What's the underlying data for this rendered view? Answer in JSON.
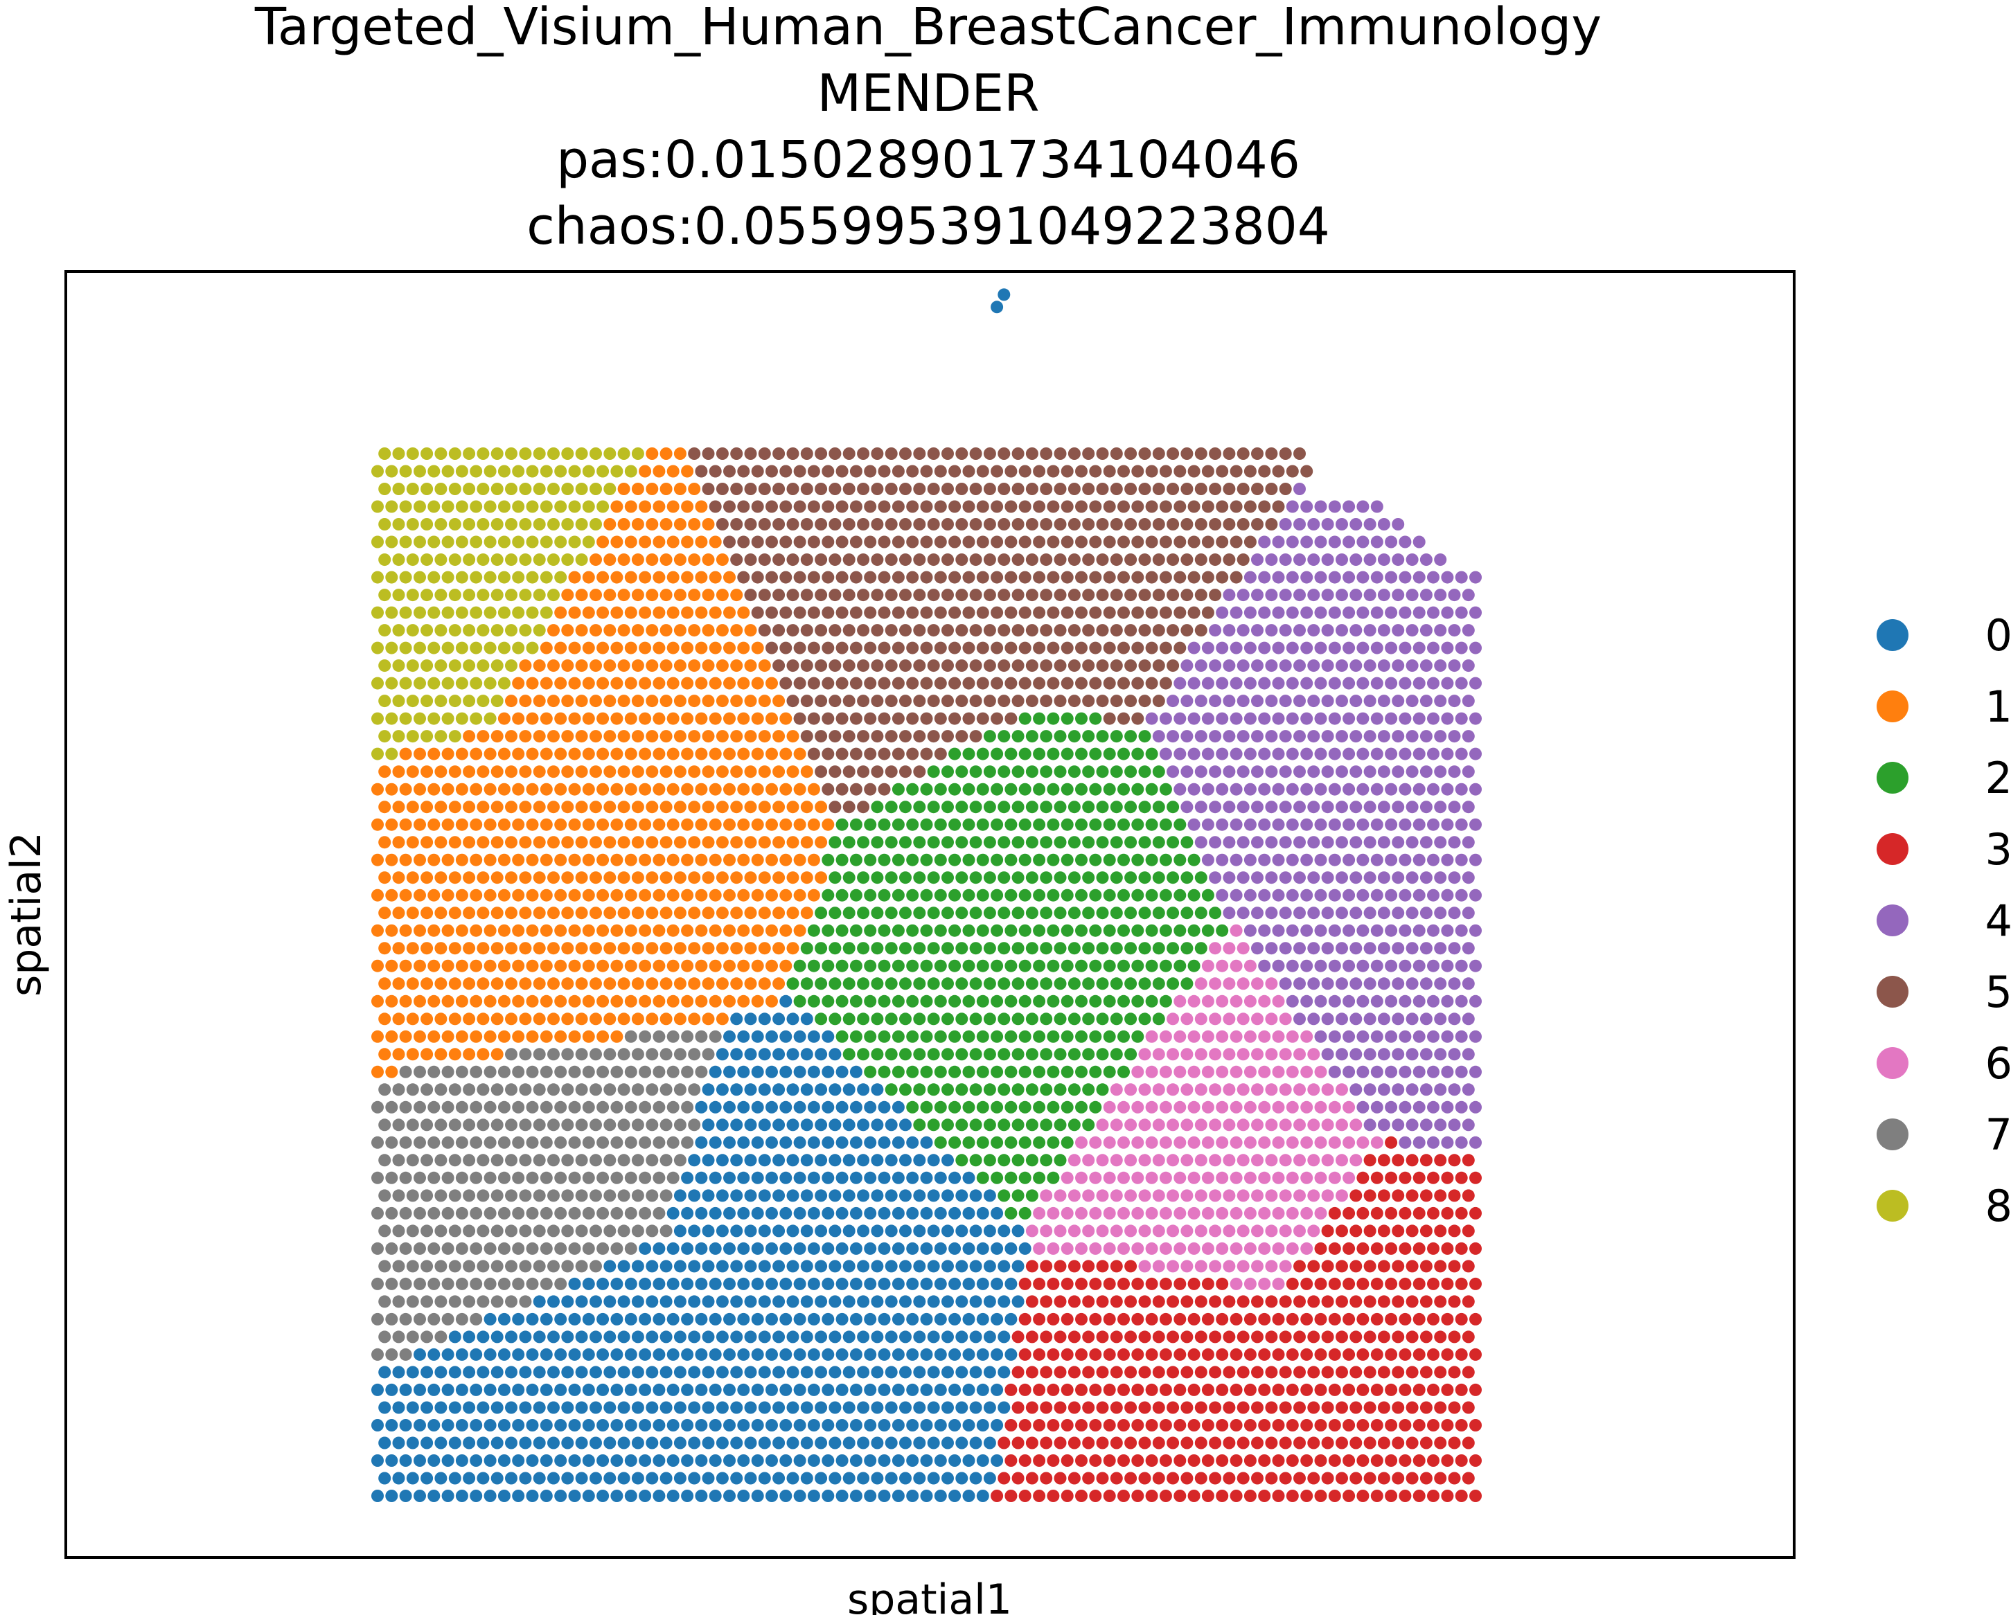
{
  "chart_data": {
    "type": "scatter",
    "title_lines": [
      "Targeted_Visium_Human_BreastCancer_Immunology",
      "MENDER",
      "pas:0.015028901734104046",
      "chaos:0.055995391049223804"
    ],
    "xlabel": "spatial1",
    "ylabel": "spatial2",
    "grid": false,
    "ticks_shown": false,
    "legend_position": "right",
    "x_range": [
      0,
      78
    ],
    "y_range": [
      0,
      59
    ],
    "grid_spec": {
      "columns": 78,
      "rows": 59,
      "row_offset": "odd rows shifted by half a column"
    },
    "categories": [
      "0",
      "1",
      "2",
      "3",
      "4",
      "5",
      "6",
      "7",
      "8"
    ],
    "colors": {
      "0": "#1f77b4",
      "1": "#ff7f0e",
      "2": "#2ca02c",
      "3": "#d62728",
      "4": "#9467bd",
      "5": "#8c564b",
      "6": "#e377c2",
      "7": "#7f7f7f",
      "8": "#bcbd22"
    },
    "tissue_boundary": {
      "x_min": 0,
      "x_max": 78,
      "y_min": 0,
      "y_max": 59,
      "top_right_taper": [
        [
          66,
          59
        ],
        [
          72,
          55
        ],
        [
          78,
          52
        ]
      ],
      "top_left_notch_yellow_end_row": 58
    },
    "region_centers": [
      {
        "category": "8",
        "x": 4,
        "y": 53
      },
      {
        "category": "1",
        "x": 18,
        "y": 43
      },
      {
        "category": "1",
        "x": 8,
        "y": 33
      },
      {
        "category": "5",
        "x": 37,
        "y": 53
      },
      {
        "category": "5",
        "x": 52,
        "y": 57
      },
      {
        "category": "4",
        "x": 68,
        "y": 44
      },
      {
        "category": "4",
        "x": 74,
        "y": 29
      },
      {
        "category": "2",
        "x": 47,
        "y": 32
      },
      {
        "category": "6",
        "x": 62,
        "y": 19
      },
      {
        "category": "7",
        "x": 10,
        "y": 17
      },
      {
        "category": "0",
        "x": 14,
        "y": 6
      },
      {
        "category": "0",
        "x": 30,
        "y": 10
      },
      {
        "category": "3",
        "x": 60,
        "y": 5
      },
      {
        "category": "3",
        "x": 72,
        "y": 11
      }
    ],
    "outlier_points": [
      {
        "x": 44.5,
        "y": 68,
        "category": "0"
      },
      {
        "x": 44,
        "y": 67.3,
        "category": "0"
      }
    ],
    "legend": [
      "0",
      "1",
      "2",
      "3",
      "4",
      "5",
      "6",
      "7",
      "8"
    ]
  }
}
